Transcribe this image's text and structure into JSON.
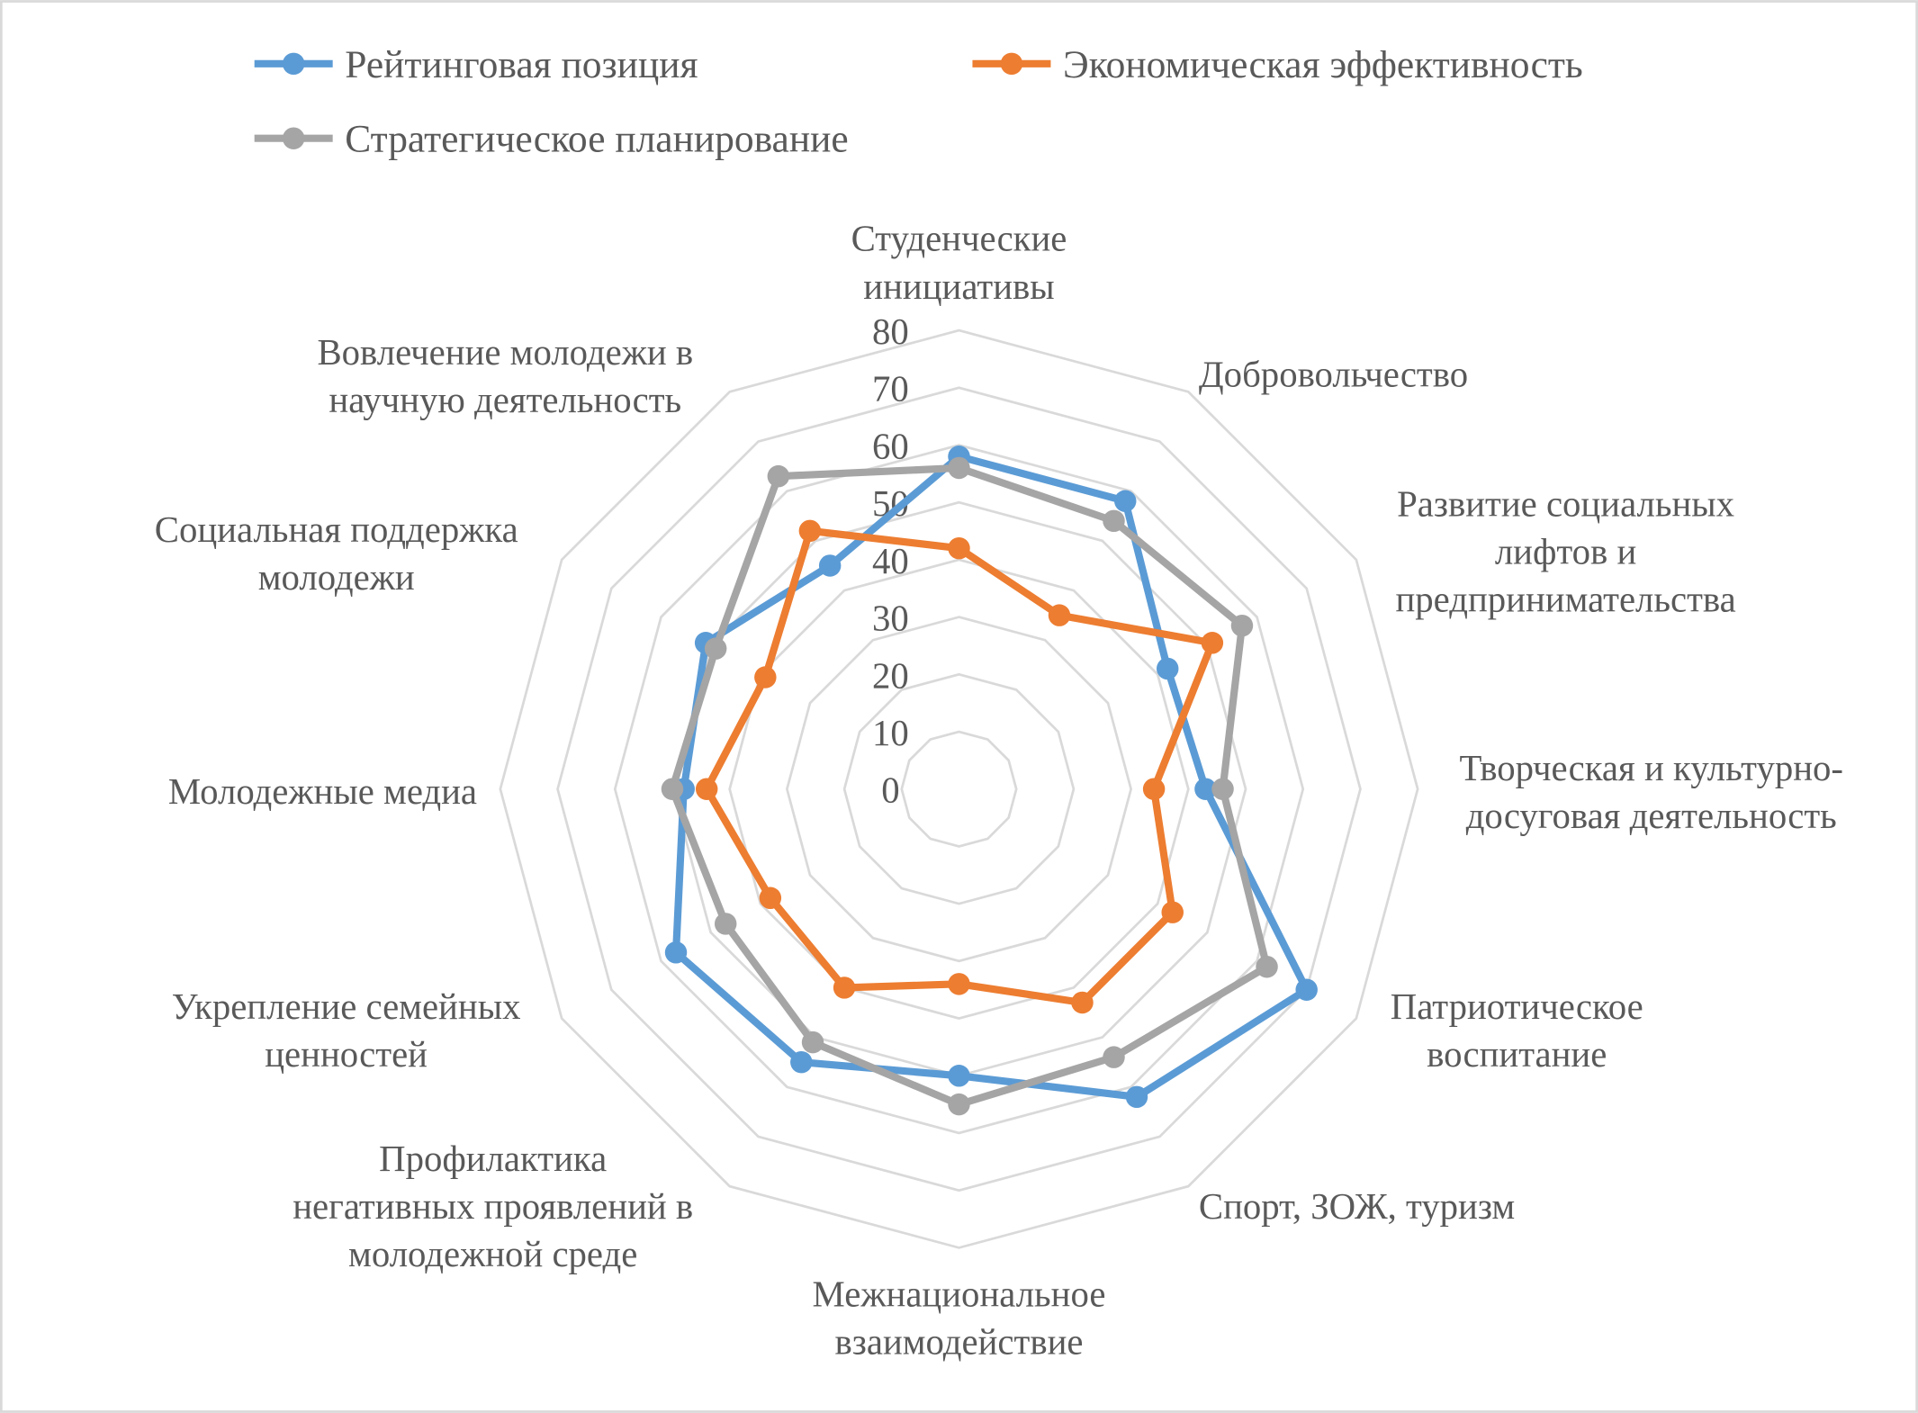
{
  "chart_data": {
    "type": "radar",
    "title": "",
    "categories": [
      [
        "Студенческие",
        "инициативы"
      ],
      [
        "Добровольчество"
      ],
      [
        "Развитие социальных",
        "лифтов и",
        "предпринимательства"
      ],
      [
        "Творческая и культурно-",
        "досуговая деятельность"
      ],
      [
        "Патриотическое",
        "воспитание"
      ],
      [
        "Спорт, ЗОЖ, туризм"
      ],
      [
        "Межнациональное",
        "взаимодействие"
      ],
      [
        "Профилактика",
        "негативных проявлений в",
        "молодежной среде"
      ],
      [
        "Укрепление семейных",
        "ценностей"
      ],
      [
        "Молодежные медиа"
      ],
      [
        "Социальная поддержка",
        "молодежи"
      ],
      [
        "Вовлечение молодежи в",
        "научную деятельность"
      ]
    ],
    "rlim": [
      0,
      80
    ],
    "ticks": [
      "0",
      "10",
      "20",
      "30",
      "40",
      "50",
      "60",
      "70",
      "80"
    ],
    "grid": true,
    "legend_position": "top",
    "series": [
      {
        "name": "Рейтинговая позиция",
        "color": "#5B9BD5",
        "values": [
          58,
          58,
          42,
          43,
          70,
          62,
          50,
          55,
          57,
          48,
          51,
          45
        ]
      },
      {
        "name": "Экономическая эффективность",
        "color": "#ED7D31",
        "values": [
          42,
          35,
          51,
          34,
          43,
          43,
          34,
          40,
          38,
          44,
          39,
          52
        ]
      },
      {
        "name": "Стратегическое планирование",
        "color": "#A5A5A5",
        "values": [
          56,
          54,
          57,
          46,
          62,
          54,
          55,
          51,
          47,
          50,
          49,
          63
        ]
      }
    ]
  }
}
